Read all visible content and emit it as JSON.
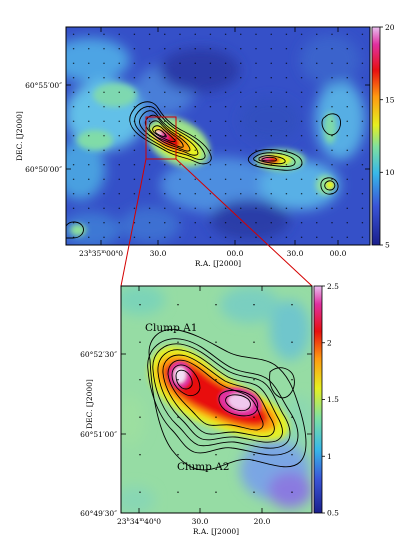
{
  "chart_data": [
    {
      "type": "heatmap",
      "xlabel": "R.A. [J2000]",
      "ylabel": "DEC. [J2000]",
      "x_ticks": [
        "23h35m00.0s",
        "30.0",
        "00.0",
        "30.0",
        "00.0"
      ],
      "y_ticks": [
        "60°55'00\"",
        "60°50'00\""
      ],
      "colorbar": {
        "min": 5,
        "max": 20,
        "ticks": [
          "20",
          "15",
          "10",
          "5"
        ]
      },
      "contours": "black",
      "grid": "dotted"
    },
    {
      "type": "heatmap",
      "xlabel": "R.A. [J2000]",
      "ylabel": "DEC. [J2000]",
      "x_ticks": [
        "23h34m40.0s",
        "30.0",
        "20.0"
      ],
      "y_ticks": [
        "60°52'30\"",
        "60°51'00\"",
        "60°49'30\""
      ],
      "colorbar": {
        "min": 0.5,
        "max": 2.5,
        "ticks": [
          "2.5",
          "2",
          "1.5",
          "1",
          "0.5"
        ]
      },
      "annotations": [
        "Clump A1",
        "Clump A2"
      ],
      "contours": "black",
      "grid": "dotted"
    }
  ],
  "colors": {
    "zoom_lines": "#d40000",
    "contour": "#000000"
  },
  "top": {
    "x_ticks": [
      {
        "main": "23",
        "sup1": "h",
        "mid": "35",
        "sup2": "m",
        "tail": "00",
        "sup3": "s",
        "end": "0"
      },
      {
        "text": "30.0"
      },
      {
        "text": "00.0"
      },
      {
        "text": "30.0"
      },
      {
        "text": "00.0"
      }
    ],
    "y_ticks": [
      "60°55′00″",
      "60°50′00″"
    ],
    "xlabel": "R.A. [J2000]",
    "ylabel": "DEC. [J2000]",
    "cbar_ticks": [
      "20",
      "15",
      "10",
      "5"
    ]
  },
  "bottom": {
    "x_ticks": [
      {
        "main": "23",
        "sup1": "h",
        "mid": "34",
        "sup2": "m",
        "tail": "40",
        "sup3": "s",
        "end": "0"
      },
      {
        "text": "30.0"
      },
      {
        "text": "20.0"
      }
    ],
    "y_ticks": [
      "60°52′30″",
      "60°51′00″",
      "60°49′30″"
    ],
    "xlabel": "R.A. [J2000]",
    "ylabel": "DEC. [J2000]",
    "cbar_ticks": [
      "2.5",
      "2",
      "1.5",
      "1",
      "0.5"
    ],
    "clump_a1": "Clump A1",
    "clump_a2": "Clump A2"
  }
}
